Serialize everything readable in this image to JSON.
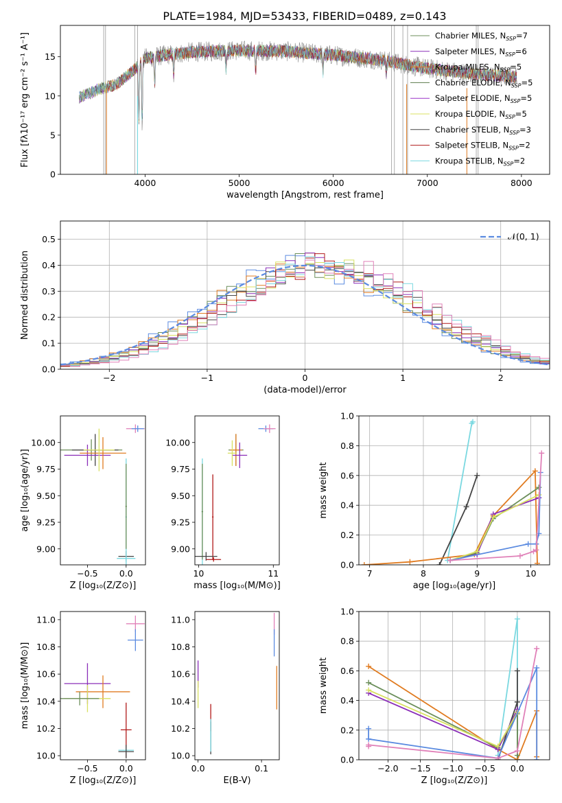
{
  "title": "PLATE=1984, MJD=53433, FIBERID=0489, z=0.143",
  "models": [
    {
      "name": "Chabrier MILES",
      "nssp": "7",
      "color": "#6b8e5a"
    },
    {
      "name": "Salpeter MILES",
      "nssp": "6",
      "color": "#8a2db8"
    },
    {
      "name": "Kroupa MILES",
      "nssp": "5",
      "color": "#e07b20"
    },
    {
      "name": "Chabrier ELODIE",
      "nssp": "5",
      "color": "#5a7a4a"
    },
    {
      "name": "Salpeter ELODIE",
      "nssp": "5",
      "color": "#9a32c8"
    },
    {
      "name": "Kroupa ELODIE",
      "nssp": "5",
      "color": "#d8e060"
    },
    {
      "name": "Chabrier STELIB",
      "nssp": "3",
      "color": "#444444"
    },
    {
      "name": "Salpeter STELIB",
      "nssp": "2",
      "color": "#b01818"
    },
    {
      "name": "Kroupa STELIB",
      "nssp": "2",
      "color": "#7ad8e0"
    }
  ],
  "chart_data": [
    {
      "id": "spectrum",
      "type": "line",
      "xlabel": "wavelength [Angstrom, rest frame]",
      "ylabel": "Flux [fλ10⁻¹⁷ erg cm⁻² s⁻¹ A⁻¹]",
      "xlim": [
        3100,
        8300
      ],
      "ylim": [
        0,
        19
      ],
      "xticks": [
        4000,
        5000,
        6000,
        7000,
        8000
      ],
      "yticks": [
        0,
        5,
        10,
        15
      ],
      "data_color": "#888888",
      "data_envelope": {
        "x": [
          3300,
          3500,
          3700,
          3900,
          4000,
          4200,
          4500,
          5000,
          5500,
          6000,
          6500,
          7000,
          7500,
          8000
        ],
        "y": [
          9.8,
          10.8,
          11.5,
          13.5,
          14.8,
          15.2,
          15.6,
          15.8,
          15.7,
          15.2,
          14.6,
          13.5,
          12.8,
          12.4
        ]
      },
      "absorption_lines": [
        {
          "x": 3934,
          "depth": 0.55
        },
        {
          "x": 3969,
          "depth": 0.6
        },
        {
          "x": 4102,
          "depth": 0.25
        },
        {
          "x": 4305,
          "depth": 0.2
        },
        {
          "x": 4861,
          "depth": 0.15
        },
        {
          "x": 5175,
          "depth": 0.2
        },
        {
          "x": 5892,
          "depth": 0.15
        },
        {
          "x": 6563,
          "depth": 0.1
        }
      ],
      "masked_ranges": [
        [
          3560,
          3580
        ],
        [
          3890,
          3920
        ],
        [
          6620,
          6650
        ],
        [
          6740,
          6790
        ],
        [
          7520,
          7540
        ]
      ],
      "legend": "top-right"
    },
    {
      "id": "residuals",
      "type": "step",
      "xlabel": "(data-model)/error",
      "ylabel": "Normed distribution",
      "xlim": [
        -2.5,
        2.5
      ],
      "ylim": [
        0,
        0.57
      ],
      "xticks": [
        -2,
        -1,
        0,
        1,
        2
      ],
      "yticks": [
        0.0,
        0.1,
        0.2,
        0.3,
        0.4,
        0.5
      ],
      "bin_width": 0.1,
      "grid": true,
      "gaussian": {
        "label": "𝒩(0, 1)",
        "mu": 0,
        "sigma": 1,
        "color": "#5a8ae0"
      },
      "series_colors": [
        "#5a8ae0",
        "#e07b20",
        "#6b8e5a",
        "#8a2db8",
        "#d8e060",
        "#444444",
        "#b01818",
        "#7ad8e0",
        "#e080b8"
      ],
      "legend": "top-right"
    },
    {
      "id": "age-z",
      "type": "errorbar",
      "xlabel": "Z [log₁₀(Z/Z⊙)]",
      "ylabel": "age  [log₁₀(age/yr)]",
      "xlim": [
        -0.85,
        0.25
      ],
      "ylim": [
        8.85,
        10.25
      ],
      "xticks": [
        -0.5,
        0.0
      ],
      "yticks": [
        9.0,
        9.25,
        9.5,
        9.75,
        10.0
      ],
      "points": [
        {
          "x": 0.12,
          "xerr": 0.12,
          "y": 10.13,
          "yerr": 0.04,
          "color": "#e080b8"
        },
        {
          "x": 0.15,
          "xerr": 0.08,
          "y": 10.13,
          "yerr": 0.03,
          "color": "#5a8ae0"
        },
        {
          "x": -0.45,
          "xerr": 0.4,
          "y": 9.93,
          "yerr": 0.1,
          "color": "#6b8e5a"
        },
        {
          "x": -0.4,
          "xerr": 0.3,
          "y": 9.93,
          "yerr": 0.15,
          "color": "#444444"
        },
        {
          "x": -0.5,
          "xerr": 0.3,
          "y": 9.88,
          "yerr": 0.1,
          "color": "#8a2db8"
        },
        {
          "x": -0.3,
          "xerr": 0.3,
          "y": 9.9,
          "yerr": 0.15,
          "color": "#e07b20"
        },
        {
          "x": -0.35,
          "xerr": 0.2,
          "y": 9.93,
          "yerr": 0.2,
          "color": "#d8e060"
        },
        {
          "x": 0.0,
          "xerr": 0.1,
          "y": 8.93,
          "yerr": 0.05,
          "color": "#444444"
        },
        {
          "x": 0.0,
          "xerr": 0.12,
          "y": 8.91,
          "yerr": 0.03,
          "color": "#7ad8e0"
        },
        {
          "x": 0.0,
          "xerr": 0.01,
          "y": 9.3,
          "yerr": 0.55,
          "color": "#7ad8e0"
        },
        {
          "x": 0.0,
          "xerr": 0.01,
          "y": 9.4,
          "yerr": 0.4,
          "color": "#6b8e5a"
        }
      ]
    },
    {
      "id": "age-mass",
      "type": "errorbar",
      "xlabel": "mass [log₁₀(M/M⊙)]",
      "ylabel": "",
      "xlim": [
        9.95,
        11.08
      ],
      "ylim": [
        8.85,
        10.25
      ],
      "xticks": [
        10,
        11
      ],
      "yticks": [
        9.0,
        9.25,
        9.5,
        9.75,
        10.0
      ],
      "points": [
        {
          "x": 10.9,
          "xerr": 0.1,
          "y": 10.13,
          "yerr": 0.03,
          "color": "#5a8ae0"
        },
        {
          "x": 10.95,
          "xerr": 0.08,
          "y": 10.13,
          "yerr": 0.04,
          "color": "#e080b8"
        },
        {
          "x": 10.5,
          "xerr": 0.1,
          "y": 9.93,
          "yerr": 0.15,
          "color": "#6b8e5a"
        },
        {
          "x": 10.5,
          "xerr": 0.08,
          "y": 9.93,
          "yerr": 0.15,
          "color": "#e07b20"
        },
        {
          "x": 10.55,
          "xerr": 0.1,
          "y": 9.88,
          "yerr": 0.12,
          "color": "#8a2db8"
        },
        {
          "x": 10.45,
          "xerr": 0.06,
          "y": 9.9,
          "yerr": 0.12,
          "color": "#d8e060"
        },
        {
          "x": 10.05,
          "xerr": 0.01,
          "y": 9.35,
          "yerr": 0.5,
          "color": "#7ad8e0"
        },
        {
          "x": 10.05,
          "xerr": 0.01,
          "y": 9.35,
          "yerr": 0.45,
          "color": "#6b8e5a"
        },
        {
          "x": 10.19,
          "xerr": 0.01,
          "y": 9.3,
          "yerr": 0.4,
          "color": "#b01818"
        },
        {
          "x": 10.1,
          "xerr": 0.15,
          "y": 8.93,
          "yerr": 0.04,
          "color": "#444444"
        },
        {
          "x": 10.2,
          "xerr": 0.1,
          "y": 8.9,
          "yerr": 0.02,
          "color": "#b01818"
        }
      ]
    },
    {
      "id": "weight-age",
      "type": "line",
      "xlabel": "age  [log₁₀(age/yr)]",
      "ylabel": "mass weight",
      "xlim": [
        6.8,
        10.35
      ],
      "ylim": [
        0,
        1.0
      ],
      "xticks": [
        7,
        8,
        9,
        10
      ],
      "yticks": [
        0.0,
        0.2,
        0.4,
        0.6,
        0.8,
        1.0
      ],
      "grid": true,
      "series": [
        {
          "color": "#7ad8e0",
          "x": [
            8.45,
            8.9,
            8.92
          ],
          "y": [
            0.03,
            0.95,
            0.96
          ]
        },
        {
          "color": "#444444",
          "x": [
            8.3,
            8.8,
            9.0
          ],
          "y": [
            0.0,
            0.39,
            0.6
          ]
        },
        {
          "color": "#e07b20",
          "x": [
            6.9,
            7.75,
            8.95,
            9.3,
            10.08,
            10.12
          ],
          "y": [
            0.0,
            0.02,
            0.07,
            0.33,
            0.63,
            0.01
          ]
        },
        {
          "color": "#6b8e5a",
          "x": [
            8.5,
            9.0,
            9.3,
            10.15
          ],
          "y": [
            0.03,
            0.08,
            0.31,
            0.52
          ]
        },
        {
          "color": "#8a2db8",
          "x": [
            8.5,
            9.0,
            9.3,
            10.15
          ],
          "y": [
            0.03,
            0.07,
            0.34,
            0.45
          ]
        },
        {
          "color": "#d8e060",
          "x": [
            8.5,
            9.0,
            9.3,
            10.15
          ],
          "y": [
            0.03,
            0.09,
            0.32,
            0.47
          ]
        },
        {
          "color": "#5a8ae0",
          "x": [
            8.5,
            9.95,
            10.1,
            10.15,
            10.18
          ],
          "y": [
            0.03,
            0.14,
            0.14,
            0.21,
            0.62
          ]
        },
        {
          "color": "#e080b8",
          "x": [
            8.5,
            9.8,
            10.05,
            10.1,
            10.2
          ],
          "y": [
            0.03,
            0.06,
            0.09,
            0.1,
            0.75
          ]
        }
      ]
    },
    {
      "id": "mass-z",
      "type": "errorbar",
      "xlabel": "Z [log₁₀(Z/Z⊙)]",
      "ylabel": "mass [log₁₀(M/M⊙)]",
      "xlim": [
        -0.85,
        0.25
      ],
      "ylim": [
        9.97,
        11.06
      ],
      "xticks": [
        -0.5,
        0.0
      ],
      "yticks": [
        10.0,
        10.2,
        10.4,
        10.6,
        10.8,
        11.0
      ],
      "points": [
        {
          "x": 0.12,
          "xerr": 0.12,
          "y": 10.97,
          "yerr": 0.06,
          "color": "#e080b8"
        },
        {
          "x": 0.12,
          "xerr": 0.1,
          "y": 10.85,
          "yerr": 0.08,
          "color": "#5a8ae0"
        },
        {
          "x": -0.5,
          "xerr": 0.3,
          "y": 10.53,
          "yerr": 0.15,
          "color": "#8a2db8"
        },
        {
          "x": -0.3,
          "xerr": 0.35,
          "y": 10.47,
          "yerr": 0.12,
          "color": "#e07b20"
        },
        {
          "x": -0.5,
          "xerr": 0.3,
          "y": 10.42,
          "yerr": 0.1,
          "color": "#d8e060"
        },
        {
          "x": -0.6,
          "xerr": 0.25,
          "y": 10.42,
          "yerr": 0.05,
          "color": "#6b8e5a"
        },
        {
          "x": 0.0,
          "xerr": 0.07,
          "y": 10.19,
          "yerr": 0.2,
          "color": "#b01818"
        },
        {
          "x": 0.0,
          "xerr": 0.1,
          "y": 10.04,
          "yerr": 0.02,
          "color": "#7ad8e0"
        },
        {
          "x": 0.0,
          "xerr": 0.1,
          "y": 10.03,
          "yerr": 0.05,
          "color": "#444444"
        }
      ]
    },
    {
      "id": "mass-ebv",
      "type": "errorbar",
      "xlabel": "E(B-V)",
      "ylabel": "",
      "xlim": [
        -0.005,
        0.128
      ],
      "ylim": [
        9.97,
        11.06
      ],
      "xticks": [
        0.0,
        0.1
      ],
      "yticks": [
        10.0,
        10.2,
        10.4,
        10.6,
        10.8,
        11.0
      ],
      "points": [
        {
          "x": 0.12,
          "xerr": 0.0,
          "y": 10.97,
          "yerr": 0.08,
          "color": "#e080b8"
        },
        {
          "x": 0.12,
          "xerr": 0.0,
          "y": 10.83,
          "yerr": 0.1,
          "color": "#5a8ae0"
        },
        {
          "x": 0.124,
          "xerr": 0.0,
          "y": 10.5,
          "yerr": 0.16,
          "color": "#e07b20"
        },
        {
          "x": 0.0,
          "xerr": 0.0,
          "y": 10.6,
          "yerr": 0.1,
          "color": "#8a2db8"
        },
        {
          "x": 0.0,
          "xerr": 0.0,
          "y": 10.45,
          "yerr": 0.1,
          "color": "#d8e060"
        },
        {
          "x": 0.02,
          "xerr": 0.0,
          "y": 10.28,
          "yerr": 0.1,
          "color": "#b01818"
        },
        {
          "x": 0.02,
          "xerr": 0.0,
          "y": 10.13,
          "yerr": 0.12,
          "color": "#444444"
        },
        {
          "x": 0.02,
          "xerr": 0.0,
          "y": 10.15,
          "yerr": 0.12,
          "color": "#7ad8e0"
        }
      ]
    },
    {
      "id": "weight-z",
      "type": "line",
      "xlabel": "Z [log₁₀(Z/Z⊙)]",
      "ylabel": "mass weight",
      "xlim": [
        -2.45,
        0.5
      ],
      "ylim": [
        0,
        1.0
      ],
      "xticks": [
        -2.0,
        -1.5,
        -1.0,
        -0.5,
        0.0
      ],
      "yticks": [
        0.0,
        0.2,
        0.4,
        0.6,
        0.8,
        1.0
      ],
      "grid": true,
      "series": [
        {
          "color": "#7ad8e0",
          "x": [
            -0.3,
            0.0,
            0.0
          ],
          "y": [
            0.03,
            0.95,
            0.0
          ]
        },
        {
          "color": "#444444",
          "x": [
            -0.3,
            0.0,
            0.0,
            0.0
          ],
          "y": [
            0.0,
            0.39,
            0.6,
            0.0
          ]
        },
        {
          "color": "#e07b20",
          "x": [
            -2.3,
            -0.3,
            0.0,
            0.3,
            0.3
          ],
          "y": [
            0.63,
            0.07,
            0.0,
            0.33,
            0.02
          ]
        },
        {
          "color": "#6b8e5a",
          "x": [
            -2.3,
            -0.3,
            0.0,
            0.0
          ],
          "y": [
            0.52,
            0.08,
            0.31,
            0.03
          ]
        },
        {
          "color": "#8a2db8",
          "x": [
            -2.3,
            -0.3,
            0.0
          ],
          "y": [
            0.45,
            0.07,
            0.34
          ]
        },
        {
          "color": "#d8e060",
          "x": [
            -2.3,
            -0.3,
            0.0
          ],
          "y": [
            0.47,
            0.09,
            0.32
          ]
        },
        {
          "color": "#5a8ae0",
          "x": [
            -2.3,
            -2.3,
            -0.3,
            0.3,
            0.3
          ],
          "y": [
            0.21,
            0.14,
            0.01,
            0.62,
            0.0
          ]
        },
        {
          "color": "#e080b8",
          "x": [
            -2.3,
            -2.3,
            -0.3,
            0.0,
            0.3
          ],
          "y": [
            0.09,
            0.1,
            0.01,
            0.06,
            0.75
          ]
        }
      ]
    }
  ]
}
